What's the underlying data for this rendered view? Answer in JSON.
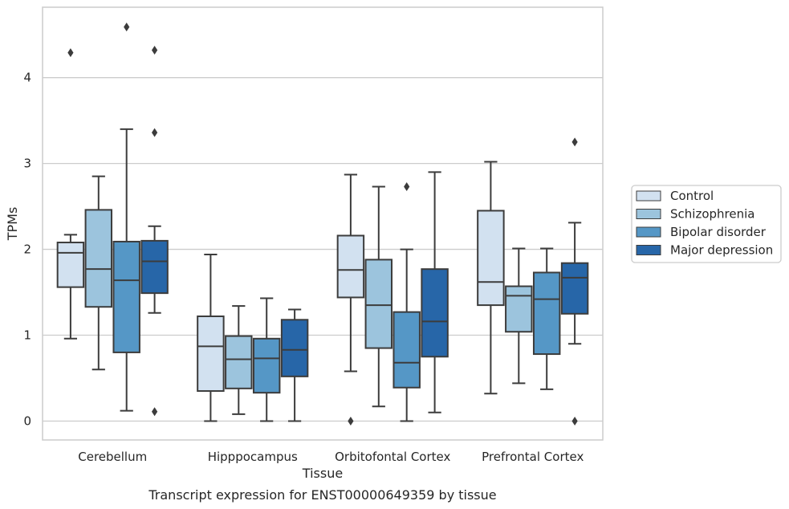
{
  "chart_data": {
    "type": "box",
    "title": "Transcript expression for ENST00000649359 by tissue",
    "xlabel": "Tissue",
    "ylabel": "TPMs",
    "ylim": [
      -0.22,
      4.82
    ],
    "yticks": [
      0,
      1,
      2,
      3,
      4
    ],
    "grid": "horizontal",
    "legend_position": "right",
    "categories": [
      "Cerebellum",
      "Hipppocampus",
      "Orbitofontal Cortex",
      "Prefrontal Cortex"
    ],
    "series": [
      {
        "name": "Control",
        "color": "#d2e1f0",
        "boxes": [
          {
            "whisker_low": 0.96,
            "q1": 1.56,
            "median": 1.96,
            "q3": 2.08,
            "whisker_high": 2.17,
            "outliers": [
              4.29
            ]
          },
          {
            "whisker_low": 0.0,
            "q1": 0.35,
            "median": 0.87,
            "q3": 1.22,
            "whisker_high": 1.94,
            "outliers": []
          },
          {
            "whisker_low": 0.58,
            "q1": 1.44,
            "median": 1.76,
            "q3": 2.16,
            "whisker_high": 2.87,
            "outliers": [
              0.0
            ]
          },
          {
            "whisker_low": 0.32,
            "q1": 1.35,
            "median": 1.62,
            "q3": 2.45,
            "whisker_high": 3.02,
            "outliers": []
          }
        ]
      },
      {
        "name": "Schizophrenia",
        "color": "#9cc4dd",
        "boxes": [
          {
            "whisker_low": 0.6,
            "q1": 1.33,
            "median": 1.77,
            "q3": 2.46,
            "whisker_high": 2.85,
            "outliers": []
          },
          {
            "whisker_low": 0.08,
            "q1": 0.38,
            "median": 0.72,
            "q3": 0.99,
            "whisker_high": 1.34,
            "outliers": []
          },
          {
            "whisker_low": 0.17,
            "q1": 0.85,
            "median": 1.35,
            "q3": 1.88,
            "whisker_high": 2.73,
            "outliers": []
          },
          {
            "whisker_low": 0.44,
            "q1": 1.04,
            "median": 1.46,
            "q3": 1.57,
            "whisker_high": 2.01,
            "outliers": []
          }
        ]
      },
      {
        "name": "Bipolar disorder",
        "color": "#5597c6",
        "boxes": [
          {
            "whisker_low": 0.12,
            "q1": 0.8,
            "median": 1.64,
            "q3": 2.09,
            "whisker_high": 3.4,
            "outliers": [
              4.59
            ]
          },
          {
            "whisker_low": 0.0,
            "q1": 0.33,
            "median": 0.73,
            "q3": 0.96,
            "whisker_high": 1.43,
            "outliers": []
          },
          {
            "whisker_low": 0.0,
            "q1": 0.39,
            "median": 0.68,
            "q3": 1.27,
            "whisker_high": 2.0,
            "outliers": [
              2.73
            ]
          },
          {
            "whisker_low": 0.37,
            "q1": 0.78,
            "median": 1.42,
            "q3": 1.73,
            "whisker_high": 2.01,
            "outliers": []
          }
        ]
      },
      {
        "name": "Major depression",
        "color": "#2766a8",
        "boxes": [
          {
            "whisker_low": 1.26,
            "q1": 1.49,
            "median": 1.86,
            "q3": 2.1,
            "whisker_high": 2.27,
            "outliers": [
              4.32,
              3.36,
              0.11
            ]
          },
          {
            "whisker_low": 0.0,
            "q1": 0.52,
            "median": 0.83,
            "q3": 1.18,
            "whisker_high": 1.3,
            "outliers": []
          },
          {
            "whisker_low": 0.1,
            "q1": 0.75,
            "median": 1.16,
            "q3": 1.77,
            "whisker_high": 2.9,
            "outliers": []
          },
          {
            "whisker_low": 0.9,
            "q1": 1.25,
            "median": 1.67,
            "q3": 1.84,
            "whisker_high": 2.31,
            "outliers": [
              3.25,
              0.0
            ]
          }
        ]
      }
    ]
  },
  "colors": {
    "grid": "#cccccc",
    "frame": "#cccccc",
    "line": "#3c3c3c",
    "text": "#262626"
  }
}
